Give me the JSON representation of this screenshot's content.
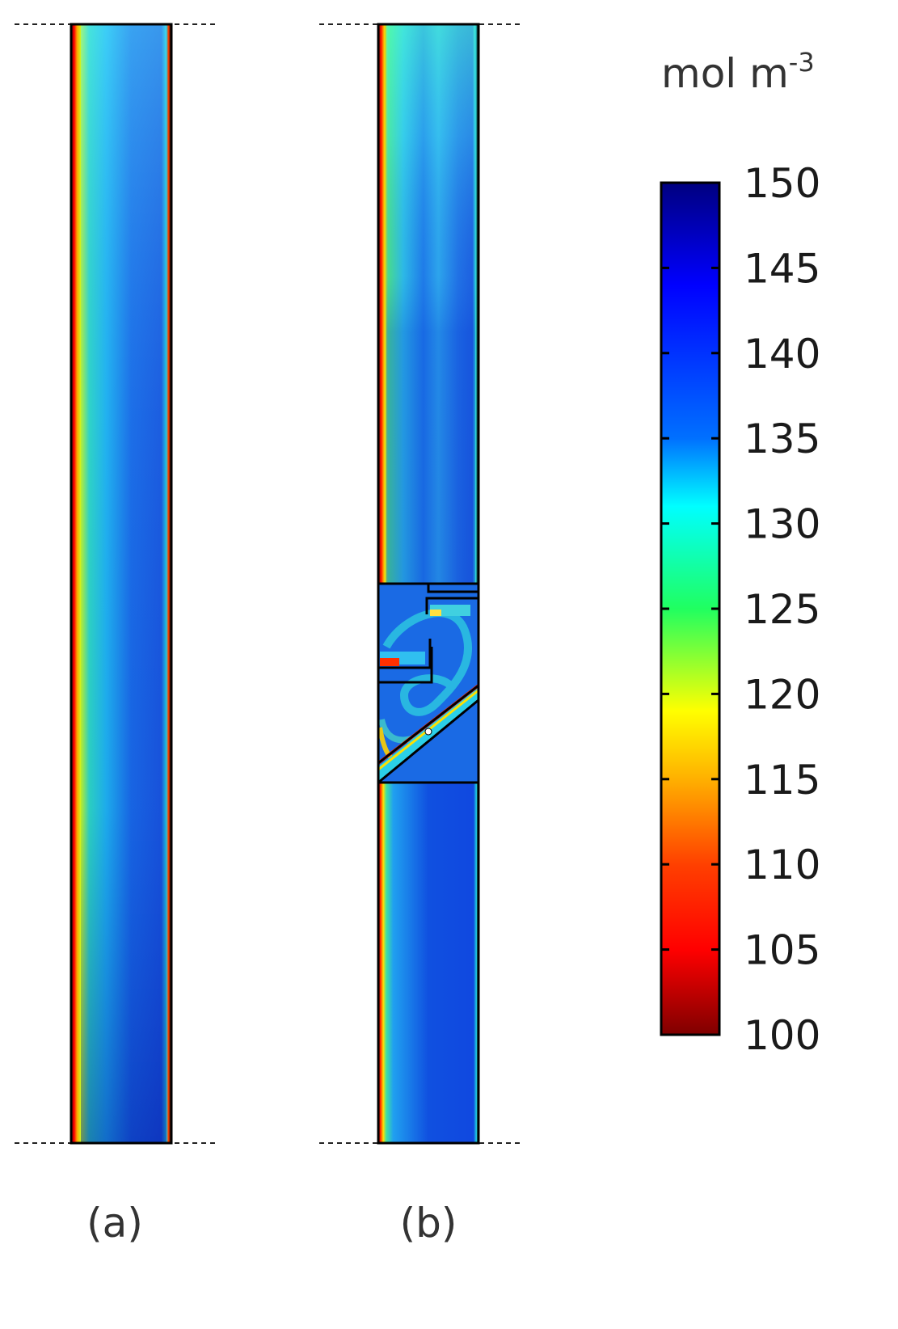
{
  "panels": [
    {
      "id": "a",
      "caption": "(a)"
    },
    {
      "id": "b",
      "caption": "(b)"
    }
  ],
  "colorbar": {
    "unit": {
      "base": "mol m",
      "exponent": "-3"
    },
    "min": 100,
    "max": 150,
    "ticks": [
      "150",
      "145",
      "140",
      "135",
      "130",
      "125",
      "120",
      "115",
      "110",
      "105",
      "100"
    ],
    "colormap": "rainbow (dark red → red → yellow → green → cyan → blue → dark blue)",
    "colors": [
      "#7f0000",
      "#ff0000",
      "#ff8000",
      "#ffff00",
      "#00ff40",
      "#00ffff",
      "#0080ff",
      "#0000ff",
      "#00007f"
    ]
  },
  "colors": {
    "background": "#ffffff",
    "boundary": "#000000",
    "dashed_line": "#222222"
  }
}
